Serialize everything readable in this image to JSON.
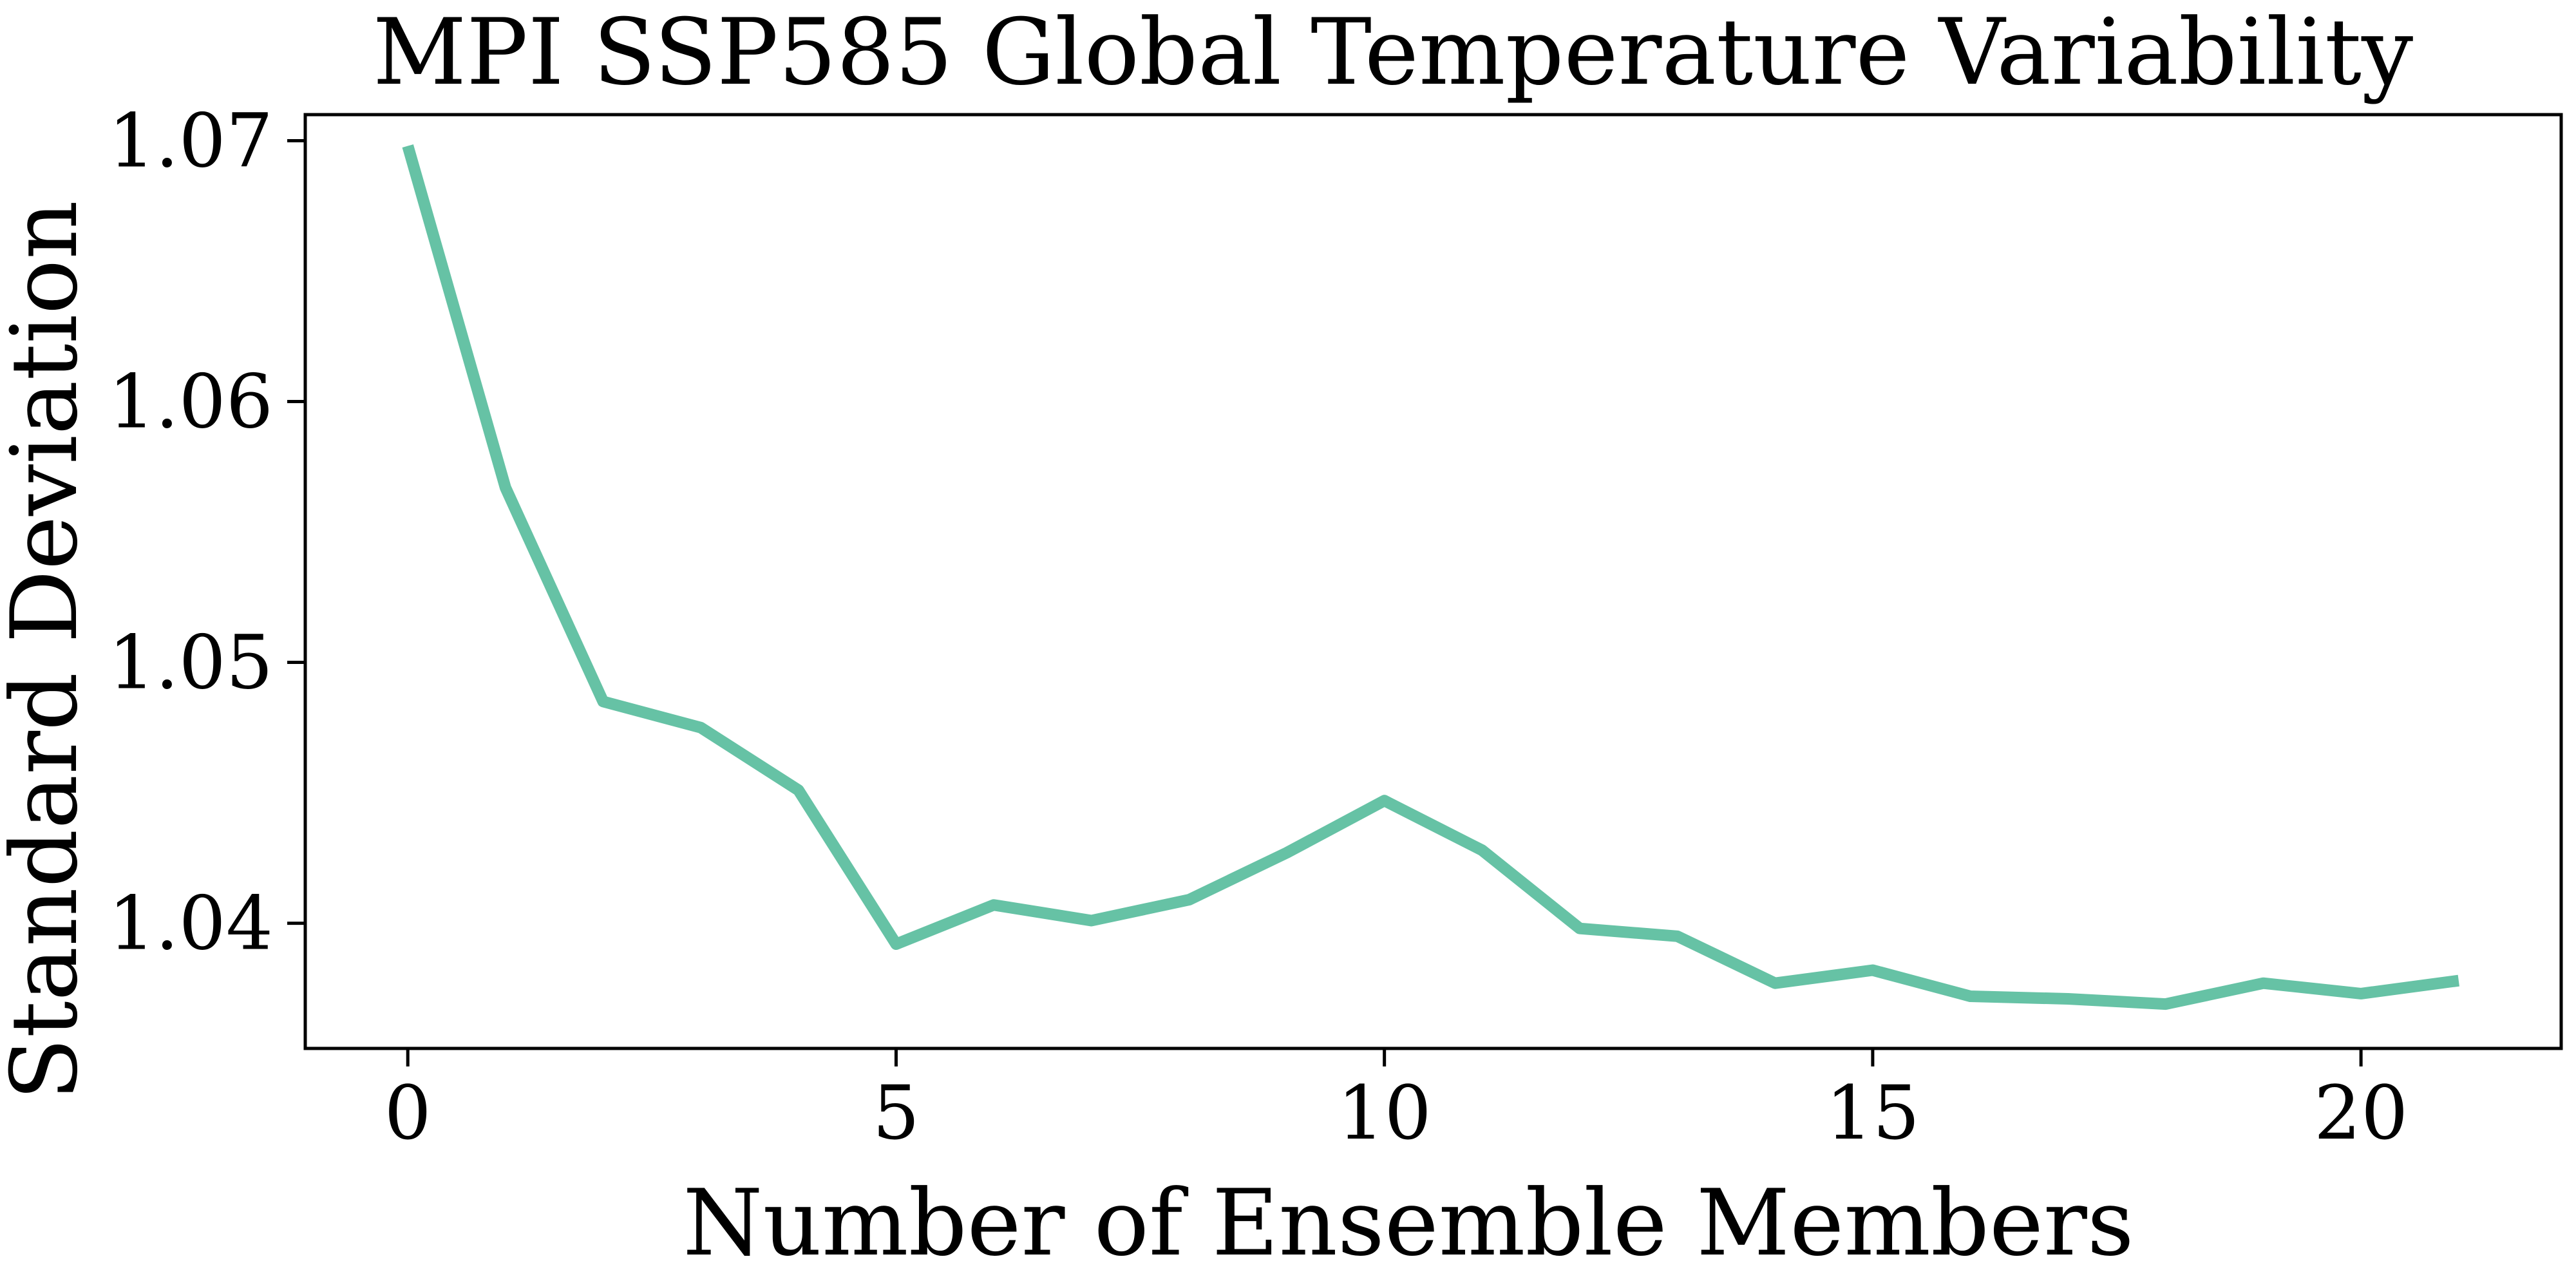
{
  "chart_data": {
    "type": "line",
    "title": "MPI SSP585 Global Temperature Variability",
    "xlabel": "Number of Ensemble Members",
    "ylabel": "Standard Deviation",
    "x": [
      0,
      1,
      2,
      3,
      4,
      5,
      6,
      7,
      8,
      9,
      10,
      11,
      12,
      13,
      14,
      15,
      16,
      17,
      18,
      19,
      20,
      21
    ],
    "series": [
      {
        "color": "#66c2a5",
        "values": [
          1.0698,
          1.0567,
          1.0485,
          1.0475,
          1.0451,
          1.0392,
          1.0407,
          1.0401,
          1.0409,
          1.0427,
          1.0447,
          1.0428,
          1.0398,
          1.0395,
          1.0377,
          1.0382,
          1.0372,
          1.0371,
          1.0369,
          1.0377,
          1.0373,
          1.0378
        ]
      }
    ],
    "xlim": [
      -1.05,
      22.05
    ],
    "ylim": [
      1.0352,
      1.071
    ],
    "xticks": [
      0,
      5,
      10,
      15,
      20
    ],
    "yticks": [
      1.04,
      1.05,
      1.06,
      1.07
    ],
    "grid": false,
    "legend": "none"
  }
}
